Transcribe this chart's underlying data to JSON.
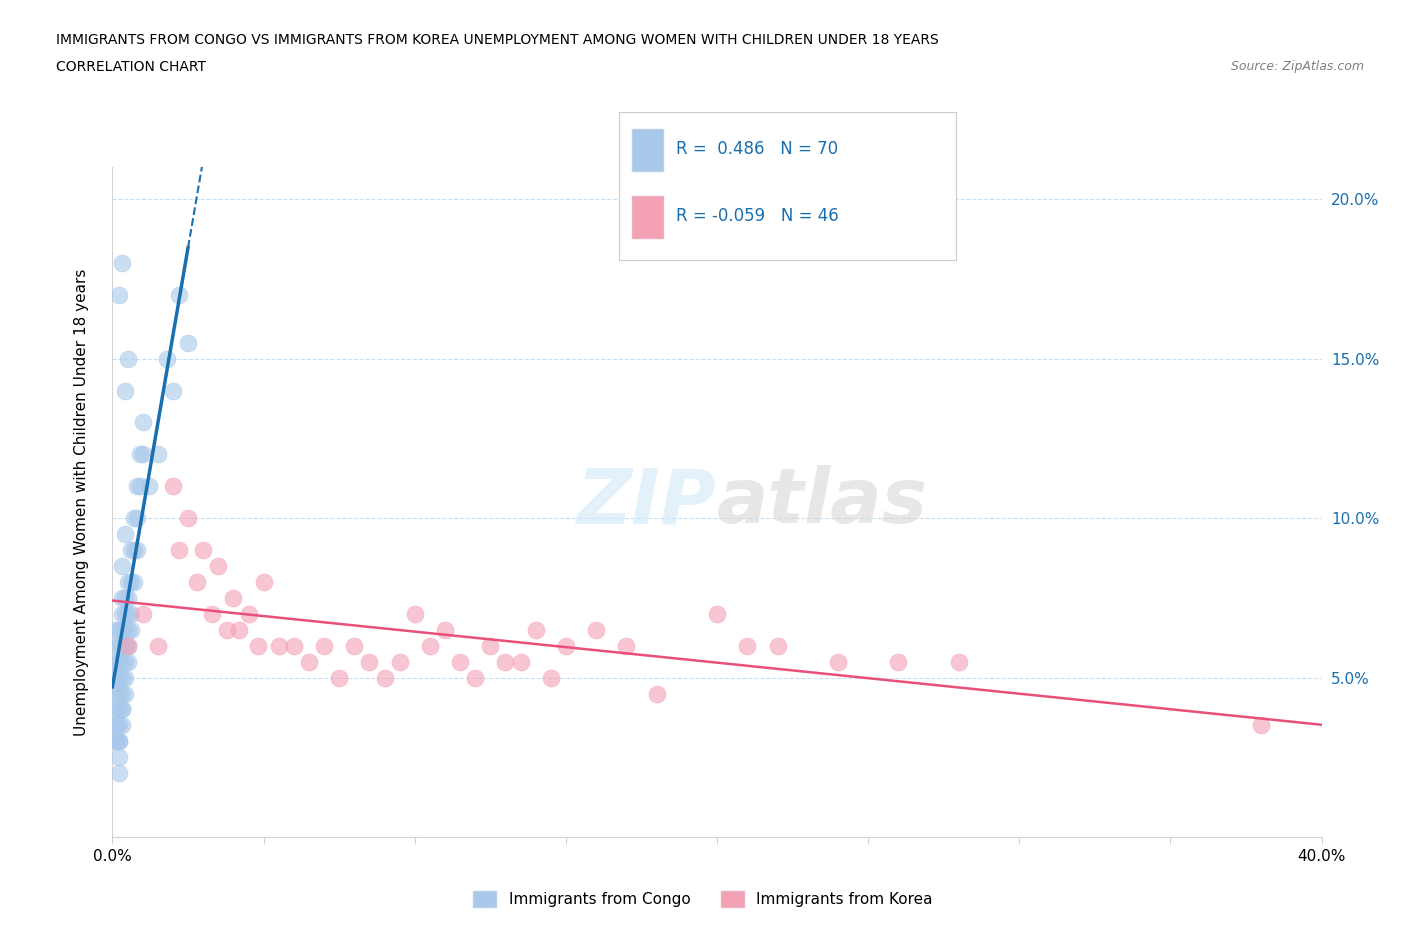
{
  "title_line1": "IMMIGRANTS FROM CONGO VS IMMIGRANTS FROM KOREA UNEMPLOYMENT AMONG WOMEN WITH CHILDREN UNDER 18 YEARS",
  "title_line2": "CORRELATION CHART",
  "source": "Source: ZipAtlas.com",
  "ylabel": "Unemployment Among Women with Children Under 18 years",
  "xlim": [
    0.0,
    0.4
  ],
  "ylim": [
    0.0,
    0.21
  ],
  "xticks": [
    0.0,
    0.05,
    0.1,
    0.15,
    0.2,
    0.25,
    0.3,
    0.35,
    0.4
  ],
  "xticklabels": [
    "0.0%",
    "",
    "",
    "",
    "",
    "",
    "",
    "",
    "40.0%"
  ],
  "ytick_positions": [
    0.0,
    0.05,
    0.1,
    0.15,
    0.2
  ],
  "yticklabels_right": [
    "",
    "5.0%",
    "10.0%",
    "15.0%",
    "20.0%"
  ],
  "congo_R": 0.486,
  "congo_N": 70,
  "korea_R": -0.059,
  "korea_N": 46,
  "congo_color": "#a8c8ea",
  "korea_color": "#f4a0b5",
  "trendline_congo_color": "#1a6faf",
  "trendline_korea_color": "#e8507a",
  "watermark": "ZIPatlas",
  "legend_label_congo": "Immigrants from Congo",
  "legend_label_korea": "Immigrants from Korea",
  "congo_x": [
    0.001,
    0.001,
    0.001,
    0.001,
    0.001,
    0.001,
    0.001,
    0.001,
    0.002,
    0.002,
    0.002,
    0.002,
    0.002,
    0.002,
    0.002,
    0.002,
    0.003,
    0.003,
    0.003,
    0.003,
    0.003,
    0.003,
    0.003,
    0.003,
    0.003,
    0.004,
    0.004,
    0.004,
    0.004,
    0.004,
    0.004,
    0.004,
    0.005,
    0.005,
    0.005,
    0.005,
    0.005,
    0.005,
    0.006,
    0.006,
    0.006,
    0.006,
    0.007,
    0.007,
    0.007,
    0.008,
    0.008,
    0.008,
    0.009,
    0.009,
    0.01,
    0.01,
    0.012,
    0.015,
    0.018,
    0.02,
    0.022,
    0.025,
    0.002,
    0.003,
    0.004,
    0.005,
    0.003,
    0.004,
    0.002,
    0.002,
    0.001,
    0.001,
    0.003,
    0.002
  ],
  "congo_y": [
    0.04,
    0.035,
    0.055,
    0.045,
    0.06,
    0.05,
    0.03,
    0.065,
    0.05,
    0.04,
    0.06,
    0.045,
    0.055,
    0.035,
    0.065,
    0.03,
    0.055,
    0.045,
    0.065,
    0.05,
    0.06,
    0.04,
    0.07,
    0.035,
    0.075,
    0.06,
    0.05,
    0.07,
    0.045,
    0.065,
    0.055,
    0.075,
    0.07,
    0.06,
    0.08,
    0.055,
    0.075,
    0.065,
    0.08,
    0.07,
    0.09,
    0.065,
    0.09,
    0.08,
    0.1,
    0.1,
    0.09,
    0.11,
    0.11,
    0.12,
    0.12,
    0.13,
    0.11,
    0.12,
    0.15,
    0.14,
    0.17,
    0.155,
    0.17,
    0.18,
    0.14,
    0.15,
    0.085,
    0.095,
    0.02,
    0.025,
    0.03,
    0.035,
    0.04,
    0.03
  ],
  "korea_x": [
    0.01,
    0.015,
    0.02,
    0.022,
    0.025,
    0.028,
    0.03,
    0.033,
    0.035,
    0.038,
    0.04,
    0.042,
    0.045,
    0.048,
    0.05,
    0.055,
    0.06,
    0.065,
    0.07,
    0.075,
    0.08,
    0.085,
    0.09,
    0.095,
    0.1,
    0.105,
    0.11,
    0.115,
    0.12,
    0.125,
    0.13,
    0.135,
    0.14,
    0.145,
    0.15,
    0.16,
    0.17,
    0.18,
    0.2,
    0.21,
    0.22,
    0.24,
    0.26,
    0.28,
    0.38,
    0.005
  ],
  "korea_y": [
    0.07,
    0.06,
    0.11,
    0.09,
    0.1,
    0.08,
    0.09,
    0.07,
    0.085,
    0.065,
    0.075,
    0.065,
    0.07,
    0.06,
    0.08,
    0.06,
    0.06,
    0.055,
    0.06,
    0.05,
    0.06,
    0.055,
    0.05,
    0.055,
    0.07,
    0.06,
    0.065,
    0.055,
    0.05,
    0.06,
    0.055,
    0.055,
    0.065,
    0.05,
    0.06,
    0.065,
    0.06,
    0.045,
    0.07,
    0.06,
    0.06,
    0.055,
    0.055,
    0.055,
    0.035,
    0.06
  ]
}
